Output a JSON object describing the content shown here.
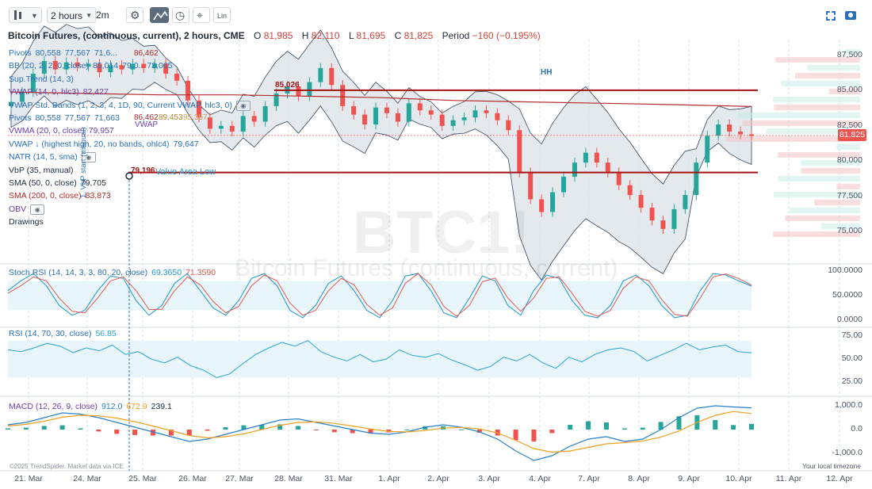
{
  "toolbar": {
    "interval": "2 hours",
    "interval_short": "2m",
    "scale": "Lin",
    "icons": [
      "candles-icon",
      "chevron-down-icon",
      "settings-icon",
      "indicators-icon",
      "history-icon",
      "crosshair-icon",
      "scale-icon",
      "fullscreen-icon",
      "camera-icon"
    ]
  },
  "header": {
    "symbol": "Bitcoin Futures, (continuous, current), 2 hours, CME",
    "o_label": "O",
    "o_value": "81,985",
    "h_label": "H",
    "h_value": "82,110",
    "l_label": "L",
    "l_value": "81,695",
    "c_label": "C",
    "c_value": "81,825",
    "period_label": "Period",
    "period_value": "−160 (−0.195%)"
  },
  "indicators": [
    {
      "name": "Pivots",
      "values": [
        "80,558",
        "77,567",
        "71,6..."
      ],
      "color": "#2a6fb8"
    },
    {
      "name": "BB (20, 2, 2, 0, close)",
      "values": [
        "85,014",
        "79,0..",
        "73,065"
      ],
      "color": "#2a6fb8"
    },
    {
      "name": "Sup.Trend (14, 3)",
      "values": [],
      "color": "#2a6fb8"
    },
    {
      "name": "VWAP (14, 0, hlc3)",
      "values": [
        "82,427"
      ],
      "color": "#6a3fb0"
    },
    {
      "name": "VWAP Std. Bands (1, 2, 3, 4, 1D, 90, Current VWAP, hlc3, 0)",
      "values": [],
      "color": "#2a6fb8"
    },
    {
      "name": "Pivots",
      "values": [
        "80,558",
        "77,567",
        "71,663"
      ],
      "color": "#2a6fb8"
    },
    {
      "name": "VWMA (20, 0, close)",
      "values": [
        "79,957"
      ],
      "color": "#6a3fb0"
    },
    {
      "name": "VWAP ↓ (highest high, 20, no bands, ohlc4)",
      "values": [
        "79,647"
      ],
      "color": "#2a6fb8"
    },
    {
      "name": "NATR (14, 5, sma)",
      "values": [],
      "color": "#2a6fb8"
    },
    {
      "name": "VbP (35, manual)",
      "values": [],
      "color": "#1f2a37"
    },
    {
      "name": "SMA (50, 0, close)",
      "values": [
        "79,705"
      ],
      "color": "#1f2a37"
    },
    {
      "name": "SMA (200, 0, close)",
      "values": [
        "83,873"
      ],
      "color": "#b52b2b"
    },
    {
      "name": "OBV",
      "values": [],
      "color": "#6a3fb0"
    },
    {
      "name": "Drawings",
      "values": [],
      "color": "#1f2a37"
    }
  ],
  "annotations": {
    "pivot_high": "86,462",
    "pivot_high_2": "86,462",
    "pivot_mid_2": "89,453",
    "pivot_top_2": "95,357",
    "level_a": "85,026",
    "level_b": "79,196",
    "value_area": "Value Area Low",
    "vbp_start": "1. VbP start (manual)",
    "hh": "HH",
    "vwap_tag": "VWAP",
    "last_price": "81,825",
    "watermark_big": "BTC1!",
    "watermark_small": "Bitcoin Futures (continuous, current)"
  },
  "panels": {
    "stoch": {
      "label": "Stoch RSI (14, 14, 3, 3, 80, 20, close)",
      "k": "69.3650",
      "d": "71.3590"
    },
    "rsi": {
      "label": "RSI (14, 70, 30, close)",
      "value": "56.85"
    },
    "macd": {
      "label": "MACD (12, 26, 9, close)",
      "macd": "912.0",
      "signal": "672.9",
      "hist": "239.1"
    }
  },
  "footer": {
    "copyright": "©2025 TrendSpider. Market data via ICE.",
    "timezone": "Your local timezone"
  },
  "colors": {
    "bull": "#26a69a",
    "bear": "#ef5350",
    "bb_fill": "#dde3ea",
    "stoch_k": "#2196c9",
    "stoch_d": "#e0584f",
    "rsi": "#2aa3d6",
    "macd": "#2a7fc9",
    "signal": "#f0a020",
    "sma200": "#b52b2b",
    "level": "#a31515",
    "band": "#e8f6fb"
  },
  "chart_data": [
    {
      "type": "candlestick",
      "title": "Bitcoin Futures, (continuous, current), 2 hours, CME",
      "x_dates": [
        "21. Mar",
        "24. Mar",
        "25. Mar",
        "26. Mar",
        "27. Mar",
        "28. Mar",
        "31. Mar",
        "1. Apr",
        "2. Apr",
        "3. Apr",
        "4. Apr",
        "7. Apr",
        "8. Apr",
        "9. Apr",
        "10. Apr",
        "11. Apr",
        "12. Apr"
      ],
      "y_ticks": [
        "87,500",
        "85,000",
        "82,500",
        "80,000",
        "77,500",
        "75,000"
      ],
      "ylim": [
        73000,
        88500
      ],
      "close_path": [
        84200,
        84900,
        86200,
        87100,
        86500,
        87000,
        86700,
        86900,
        86300,
        86800,
        86500,
        86900,
        86600,
        86900,
        86200,
        85700,
        84300,
        83100,
        82300,
        82500,
        82100,
        83200,
        82800,
        83900,
        84800,
        85300,
        84600,
        85600,
        86600,
        85400,
        83900,
        83300,
        82600,
        83800,
        83400,
        82800,
        84100,
        83600,
        83300,
        82500,
        82900,
        83100,
        83600,
        83400,
        82900,
        82200,
        79200,
        77300,
        76400,
        77800,
        78900,
        79900,
        80600,
        79900,
        79200,
        78300,
        77600,
        76700,
        75800,
        75200,
        76600,
        77600,
        79900,
        81800,
        82600,
        82100,
        81900,
        81825
      ],
      "ohlc_last": {
        "open": 81985,
        "high": 82110,
        "low": 81695,
        "close": 81825
      },
      "levels": [
        85026,
        79196
      ],
      "sma200": [
        84900,
        84800,
        84700,
        84700,
        84600,
        84500,
        84300,
        84200,
        84100,
        84000,
        83873
      ]
    },
    {
      "type": "line",
      "title": "Stoch RSI (14, 14, 3, 3, 80, 20, close)",
      "y_ticks": [
        "100.0000",
        "50.0000",
        "0.0000"
      ],
      "ylim": [
        0,
        100
      ],
      "series": [
        {
          "name": "K",
          "values": [
            60,
            80,
            95,
            70,
            30,
            10,
            20,
            60,
            90,
            85,
            40,
            10,
            30,
            75,
            95,
            60,
            25,
            10,
            40,
            85,
            95,
            70,
            20,
            5,
            30,
            75,
            90,
            60,
            20,
            5,
            40,
            90,
            95,
            60,
            15,
            5,
            45,
            90,
            80,
            30,
            10,
            60,
            92,
            85,
            40,
            10,
            5,
            30,
            80,
            92,
            70,
            30,
            5,
            10,
            60,
            95,
            92,
            80,
            69.365
          ]
        },
        {
          "name": "D",
          "values": [
            55,
            70,
            88,
            80,
            45,
            18,
            15,
            45,
            80,
            88,
            60,
            22,
            22,
            60,
            88,
            72,
            38,
            15,
            28,
            70,
            92,
            80,
            35,
            10,
            20,
            60,
            85,
            72,
            32,
            10,
            25,
            75,
            95,
            72,
            28,
            8,
            30,
            78,
            86,
            45,
            18,
            45,
            85,
            88,
            55,
            18,
            8,
            20,
            65,
            88,
            80,
            42,
            12,
            8,
            45,
            88,
            94,
            85,
            71.359
          ]
        }
      ]
    },
    {
      "type": "line",
      "title": "RSI (14, 70, 30, close)",
      "y_ticks": [
        "75.00",
        "50.00",
        "25.00"
      ],
      "ylim": [
        15,
        80
      ],
      "series": [
        {
          "name": "RSI",
          "values": [
            60,
            58,
            62,
            67,
            64,
            57,
            62,
            59,
            65,
            55,
            58,
            50,
            46,
            52,
            43,
            38,
            30,
            34,
            45,
            55,
            62,
            68,
            64,
            70,
            58,
            52,
            48,
            55,
            47,
            50,
            60,
            54,
            52,
            56,
            49,
            44,
            38,
            42,
            52,
            48,
            55,
            46,
            40,
            52,
            47,
            55,
            60,
            62,
            58,
            48,
            54,
            60,
            67,
            60,
            63,
            65,
            58,
            56.85
          ]
        }
      ]
    },
    {
      "type": "bar",
      "title": "MACD (12, 26, 9, close)",
      "y_ticks": [
        "1,000.0",
        "0.0",
        "-1,000.0"
      ],
      "ylim": [
        -1600,
        1200
      ],
      "series": [
        {
          "name": "MACD",
          "values": [
            200,
            300,
            500,
            700,
            650,
            500,
            300,
            100,
            -100,
            -300,
            -500,
            -400,
            -200,
            0,
            200,
            400,
            450,
            300,
            150,
            0,
            -150,
            -200,
            -100,
            100,
            200,
            100,
            -100,
            -400,
            -900,
            -1300,
            -1100,
            -700,
            -400,
            -300,
            -500,
            -400,
            0,
            500,
            900,
            1000,
            950,
            912
          ]
        },
        {
          "name": "Signal",
          "values": [
            150,
            220,
            350,
            520,
            600,
            580,
            480,
            330,
            150,
            -50,
            -250,
            -350,
            -300,
            -180,
            0,
            180,
            300,
            320,
            260,
            150,
            20,
            -80,
            -100,
            -40,
            60,
            90,
            30,
            -150,
            -450,
            -800,
            -950,
            -900,
            -750,
            -600,
            -550,
            -480,
            -320,
            -60,
            300,
            600,
            760,
            672.9
          ]
        },
        {
          "name": "Histogram",
          "values": [
            50,
            80,
            150,
            180,
            50,
            -80,
            -180,
            -230,
            -250,
            -250,
            -250,
            -50,
            100,
            180,
            200,
            220,
            150,
            -20,
            -110,
            -150,
            -170,
            -120,
            0,
            140,
            140,
            10,
            -130,
            -250,
            -450,
            -500,
            -150,
            200,
            350,
            300,
            50,
            80,
            320,
            560,
            600,
            400,
            190,
            239.1
          ]
        }
      ]
    }
  ]
}
